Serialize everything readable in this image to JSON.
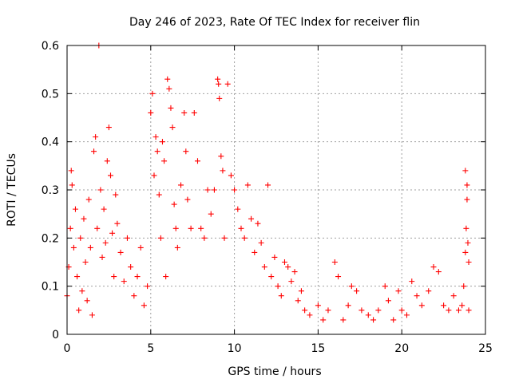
{
  "chart_data": {
    "type": "scatter",
    "title": "Day 246 of 2023, Rate Of TEC Index for receiver flin",
    "xlabel": "GPS time / hours",
    "ylabel": "ROTI / TECUs",
    "xlim": [
      0,
      25
    ],
    "ylim": [
      0,
      0.6
    ],
    "xticks": [
      0,
      5,
      10,
      15,
      20,
      25
    ],
    "xtick_labels": [
      "0",
      "5",
      "10",
      "15",
      "20",
      "25"
    ],
    "yticks": [
      0,
      0.1,
      0.2,
      0.3,
      0.4,
      0.5,
      0.6
    ],
    "ytick_labels": [
      "0",
      "0.1",
      "0.2",
      "0.3",
      "0.4",
      "0.5",
      "0.6"
    ],
    "grid": true,
    "marker": "+",
    "color": "#ff0000",
    "series": [
      {
        "points": [
          [
            0.0,
            0.08
          ],
          [
            0.1,
            0.14
          ],
          [
            0.2,
            0.22
          ],
          [
            0.25,
            0.34
          ],
          [
            0.3,
            0.31
          ],
          [
            0.4,
            0.18
          ],
          [
            0.5,
            0.26
          ],
          [
            0.6,
            0.12
          ],
          [
            0.7,
            0.05
          ],
          [
            0.8,
            0.2
          ],
          [
            0.9,
            0.09
          ],
          [
            1.0,
            0.24
          ],
          [
            1.1,
            0.15
          ],
          [
            1.2,
            0.07
          ],
          [
            1.3,
            0.28
          ],
          [
            1.4,
            0.18
          ],
          [
            1.5,
            0.04
          ],
          [
            1.6,
            0.38
          ],
          [
            1.7,
            0.41
          ],
          [
            1.8,
            0.22
          ],
          [
            1.9,
            0.6
          ],
          [
            2.0,
            0.3
          ],
          [
            2.1,
            0.16
          ],
          [
            2.2,
            0.26
          ],
          [
            2.3,
            0.19
          ],
          [
            2.4,
            0.36
          ],
          [
            2.5,
            0.43
          ],
          [
            2.6,
            0.33
          ],
          [
            2.7,
            0.21
          ],
          [
            2.8,
            0.12
          ],
          [
            2.9,
            0.29
          ],
          [
            3.0,
            0.23
          ],
          [
            3.2,
            0.17
          ],
          [
            3.4,
            0.11
          ],
          [
            3.6,
            0.2
          ],
          [
            3.8,
            0.14
          ],
          [
            4.0,
            0.08
          ],
          [
            4.2,
            0.12
          ],
          [
            4.4,
            0.18
          ],
          [
            4.6,
            0.06
          ],
          [
            4.8,
            0.1
          ],
          [
            5.0,
            0.46
          ],
          [
            5.1,
            0.5
          ],
          [
            5.2,
            0.33
          ],
          [
            5.3,
            0.41
          ],
          [
            5.4,
            0.38
          ],
          [
            5.5,
            0.29
          ],
          [
            5.6,
            0.2
          ],
          [
            5.7,
            0.4
          ],
          [
            5.8,
            0.36
          ],
          [
            5.9,
            0.12
          ],
          [
            6.0,
            0.53
          ],
          [
            6.1,
            0.51
          ],
          [
            6.2,
            0.47
          ],
          [
            6.3,
            0.43
          ],
          [
            6.4,
            0.27
          ],
          [
            6.5,
            0.22
          ],
          [
            6.6,
            0.18
          ],
          [
            6.8,
            0.31
          ],
          [
            7.0,
            0.46
          ],
          [
            7.1,
            0.38
          ],
          [
            7.2,
            0.28
          ],
          [
            7.4,
            0.22
          ],
          [
            7.6,
            0.46
          ],
          [
            7.8,
            0.36
          ],
          [
            8.0,
            0.22
          ],
          [
            8.2,
            0.2
          ],
          [
            8.4,
            0.3
          ],
          [
            8.6,
            0.25
          ],
          [
            8.8,
            0.3
          ],
          [
            9.0,
            0.53
          ],
          [
            9.05,
            0.52
          ],
          [
            9.1,
            0.49
          ],
          [
            9.2,
            0.37
          ],
          [
            9.3,
            0.34
          ],
          [
            9.4,
            0.2
          ],
          [
            9.6,
            0.52
          ],
          [
            9.8,
            0.33
          ],
          [
            10.0,
            0.3
          ],
          [
            10.2,
            0.26
          ],
          [
            10.4,
            0.22
          ],
          [
            10.6,
            0.2
          ],
          [
            10.8,
            0.31
          ],
          [
            11.0,
            0.24
          ],
          [
            11.2,
            0.17
          ],
          [
            11.4,
            0.23
          ],
          [
            11.6,
            0.19
          ],
          [
            11.8,
            0.14
          ],
          [
            12.0,
            0.31
          ],
          [
            12.2,
            0.12
          ],
          [
            12.4,
            0.16
          ],
          [
            12.6,
            0.1
          ],
          [
            12.8,
            0.08
          ],
          [
            13.0,
            0.15
          ],
          [
            13.2,
            0.14
          ],
          [
            13.4,
            0.11
          ],
          [
            13.6,
            0.13
          ],
          [
            13.8,
            0.07
          ],
          [
            14.0,
            0.09
          ],
          [
            14.2,
            0.05
          ],
          [
            14.5,
            0.04
          ],
          [
            15.0,
            0.06
          ],
          [
            15.3,
            0.03
          ],
          [
            15.6,
            0.05
          ],
          [
            16.0,
            0.15
          ],
          [
            16.2,
            0.12
          ],
          [
            16.5,
            0.03
          ],
          [
            16.8,
            0.06
          ],
          [
            17.0,
            0.1
          ],
          [
            17.3,
            0.09
          ],
          [
            17.6,
            0.05
          ],
          [
            18.0,
            0.04
          ],
          [
            18.3,
            0.03
          ],
          [
            18.6,
            0.05
          ],
          [
            19.0,
            0.1
          ],
          [
            19.2,
            0.07
          ],
          [
            19.5,
            0.03
          ],
          [
            19.8,
            0.09
          ],
          [
            20.0,
            0.05
          ],
          [
            20.3,
            0.04
          ],
          [
            20.6,
            0.11
          ],
          [
            20.9,
            0.08
          ],
          [
            21.2,
            0.06
          ],
          [
            21.6,
            0.09
          ],
          [
            21.9,
            0.14
          ],
          [
            22.2,
            0.13
          ],
          [
            22.5,
            0.06
          ],
          [
            22.8,
            0.05
          ],
          [
            23.1,
            0.08
          ],
          [
            23.4,
            0.05
          ],
          [
            23.6,
            0.06
          ],
          [
            23.8,
            0.34
          ],
          [
            23.9,
            0.28
          ],
          [
            24.0,
            0.15
          ],
          [
            24.0,
            0.05
          ],
          [
            23.85,
            0.22
          ],
          [
            23.95,
            0.19
          ],
          [
            23.7,
            0.1
          ],
          [
            23.9,
            0.31
          ],
          [
            23.8,
            0.17
          ]
        ]
      }
    ]
  }
}
